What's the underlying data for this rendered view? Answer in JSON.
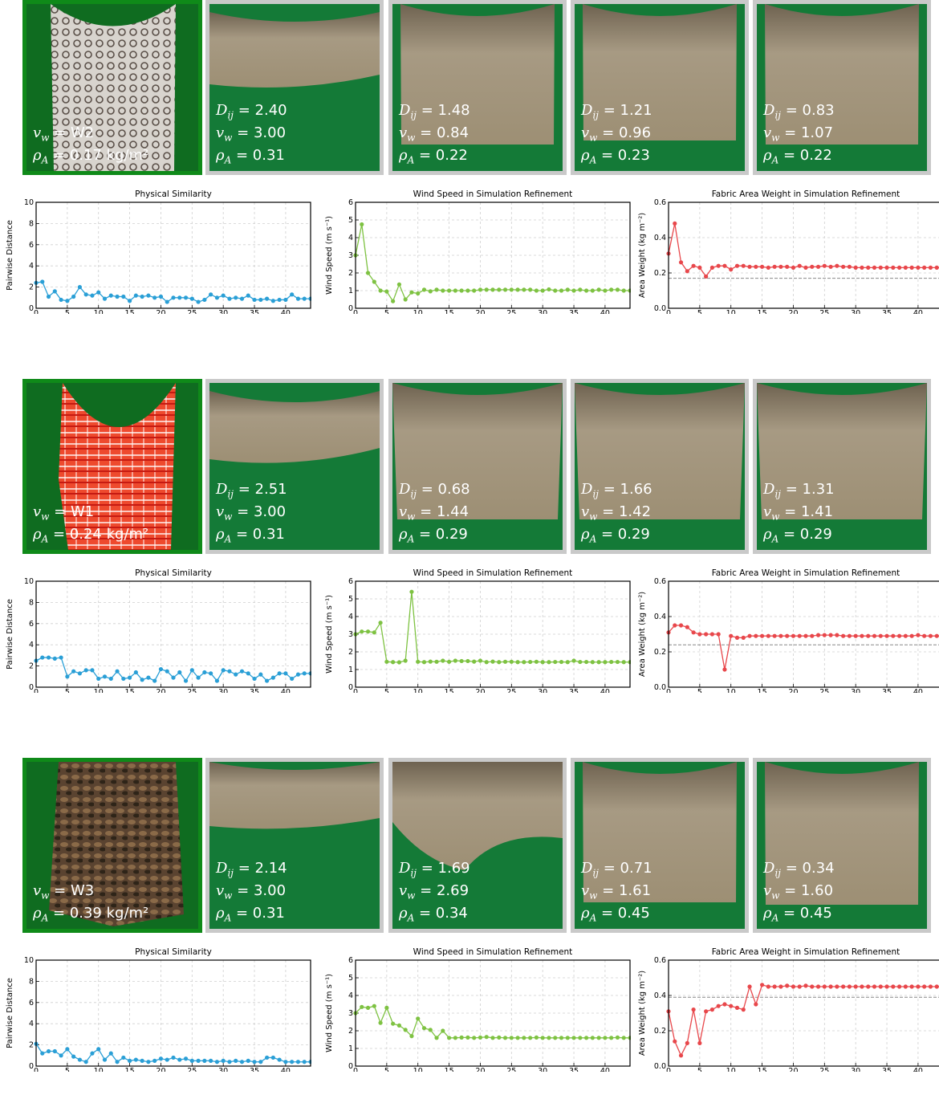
{
  "symbols": {
    "d": "D",
    "d_sub": "ij",
    "v": "v",
    "v_sub": "w",
    "rho": "ρ",
    "rho_sub": "A",
    "eq": " = "
  },
  "rows": [
    {
      "fabric_color": "#d8d4ce",
      "real": {
        "wind_label": "W2",
        "density_label": "0.17 kg/m²"
      },
      "sims": [
        {
          "d": "2.40",
          "v": "3.00",
          "rho": "0.31"
        },
        {
          "d": "1.48",
          "v": "0.84",
          "rho": "0.22"
        },
        {
          "d": "1.21",
          "v": "0.96",
          "rho": "0.23"
        },
        {
          "d": "0.83",
          "v": "1.07",
          "rho": "0.22"
        }
      ]
    },
    {
      "fabric_color": "#ee4a2e",
      "real": {
        "wind_label": "W1",
        "density_label": "0.24 kg/m²"
      },
      "sims": [
        {
          "d": "2.51",
          "v": "3.00",
          "rho": "0.31"
        },
        {
          "d": "0.68",
          "v": "1.44",
          "rho": "0.29"
        },
        {
          "d": "1.66",
          "v": "1.42",
          "rho": "0.29"
        },
        {
          "d": "1.31",
          "v": "1.41",
          "rho": "0.29"
        }
      ]
    },
    {
      "fabric_color": "#5a4330",
      "real": {
        "wind_label": "W3",
        "density_label": "0.39 kg/m²"
      },
      "sims": [
        {
          "d": "2.14",
          "v": "3.00",
          "rho": "0.31"
        },
        {
          "d": "1.69",
          "v": "2.69",
          "rho": "0.34"
        },
        {
          "d": "0.71",
          "v": "1.61",
          "rho": "0.45"
        },
        {
          "d": "0.34",
          "v": "1.60",
          "rho": "0.45"
        }
      ]
    }
  ],
  "chart_data": [
    {
      "type": "line",
      "title": "Physical Similarity",
      "ylabel": "Pairwise Distance",
      "xlim": [
        0,
        44
      ],
      "ylim": [
        0,
        10
      ],
      "xticks": [
        0,
        5,
        10,
        15,
        20,
        25,
        30,
        35,
        40
      ],
      "yticks": [
        0,
        2,
        4,
        6,
        8,
        10
      ],
      "color": "#2a9fd6",
      "grid": true,
      "values": [
        2.4,
        2.5,
        1.1,
        1.6,
        0.8,
        0.7,
        1.1,
        2.0,
        1.3,
        1.2,
        1.5,
        0.9,
        1.2,
        1.1,
        1.1,
        0.7,
        1.2,
        1.1,
        1.2,
        1.0,
        1.1,
        0.6,
        1.0,
        1.0,
        1.0,
        0.9,
        0.6,
        0.8,
        1.3,
        1.0,
        1.2,
        0.9,
        1.0,
        0.9,
        1.2,
        0.8,
        0.8,
        0.9,
        0.7,
        0.8,
        0.8,
        1.3,
        0.9,
        0.9,
        0.9
      ]
    },
    {
      "type": "line",
      "title": "Wind Speed in Simulation Refinement",
      "ylabel": "Wind Speed (m s⁻¹)",
      "xlim": [
        0,
        44
      ],
      "ylim": [
        0,
        6
      ],
      "xticks": [
        0,
        5,
        10,
        15,
        20,
        25,
        30,
        35,
        40
      ],
      "yticks": [
        0,
        1,
        2,
        3,
        4,
        5,
        6
      ],
      "color": "#7ec242",
      "grid": true,
      "values": [
        3.0,
        4.75,
        2.0,
        1.5,
        1.0,
        0.95,
        0.4,
        1.35,
        0.5,
        0.9,
        0.84,
        1.05,
        0.96,
        1.05,
        1.0,
        1.0,
        1.0,
        1.0,
        1.0,
        1.0,
        1.05,
        1.05,
        1.05,
        1.05,
        1.05,
        1.05,
        1.05,
        1.05,
        1.05,
        1.0,
        1.0,
        1.07,
        1.0,
        1.0,
        1.05,
        1.0,
        1.05,
        1.0,
        1.0,
        1.05,
        1.0,
        1.05,
        1.05,
        1.0,
        1.0
      ]
    },
    {
      "type": "line",
      "title": "Fabric Area Weight in Simulation Refinement",
      "ylabel": "Area Weight (kg m⁻²)",
      "xlim": [
        0,
        44
      ],
      "ylim": [
        0,
        0.6
      ],
      "xticks": [
        0,
        5,
        10,
        15,
        20,
        25,
        30,
        35,
        40
      ],
      "yticks": [
        0.0,
        0.2,
        0.4,
        0.6
      ],
      "color": "#e8474b",
      "grid": true,
      "reference": 0.17,
      "values": [
        0.31,
        0.48,
        0.26,
        0.21,
        0.24,
        0.23,
        0.18,
        0.23,
        0.24,
        0.24,
        0.22,
        0.24,
        0.24,
        0.235,
        0.235,
        0.235,
        0.23,
        0.235,
        0.235,
        0.235,
        0.23,
        0.24,
        0.23,
        0.235,
        0.235,
        0.24,
        0.235,
        0.24,
        0.235,
        0.235,
        0.23,
        0.23,
        0.23,
        0.23,
        0.23,
        0.23,
        0.23,
        0.23,
        0.23,
        0.23,
        0.23,
        0.23,
        0.23,
        0.23,
        0.23
      ]
    },
    {
      "type": "line",
      "title": "Physical Similarity",
      "ylabel": "Pairwise Distance",
      "xlim": [
        0,
        44
      ],
      "ylim": [
        0,
        10
      ],
      "xticks": [
        0,
        5,
        10,
        15,
        20,
        25,
        30,
        35,
        40
      ],
      "yticks": [
        0,
        2,
        4,
        6,
        8,
        10
      ],
      "color": "#2a9fd6",
      "grid": true,
      "values": [
        2.5,
        2.8,
        2.8,
        2.7,
        2.8,
        1.0,
        1.5,
        1.3,
        1.6,
        1.6,
        0.8,
        1.0,
        0.8,
        1.5,
        0.8,
        0.9,
        1.4,
        0.7,
        0.9,
        0.6,
        1.7,
        1.5,
        0.9,
        1.4,
        0.6,
        1.6,
        0.9,
        1.4,
        1.3,
        0.6,
        1.6,
        1.5,
        1.2,
        1.5,
        1.3,
        0.8,
        1.2,
        0.6,
        0.9,
        1.3,
        1.3,
        0.8,
        1.2,
        1.3,
        1.3
      ]
    },
    {
      "type": "line",
      "title": "Wind Speed in Simulation Refinement",
      "ylabel": "Wind Speed (m s⁻¹)",
      "xlim": [
        0,
        44
      ],
      "ylim": [
        0,
        6
      ],
      "xticks": [
        0,
        5,
        10,
        15,
        20,
        25,
        30,
        35,
        40
      ],
      "yticks": [
        0,
        1,
        2,
        3,
        4,
        5,
        6
      ],
      "color": "#7ec242",
      "grid": true,
      "values": [
        3.0,
        3.15,
        3.15,
        3.1,
        3.65,
        1.44,
        1.42,
        1.41,
        1.5,
        5.4,
        1.44,
        1.42,
        1.45,
        1.44,
        1.5,
        1.44,
        1.5,
        1.48,
        1.48,
        1.45,
        1.5,
        1.42,
        1.45,
        1.42,
        1.44,
        1.44,
        1.42,
        1.42,
        1.43,
        1.44,
        1.42,
        1.42,
        1.43,
        1.43,
        1.42,
        1.5,
        1.43,
        1.43,
        1.42,
        1.42,
        1.42,
        1.43,
        1.43,
        1.42,
        1.42
      ]
    },
    {
      "type": "line",
      "title": "Fabric Area Weight in Simulation Refinement",
      "ylabel": "Area Weight (kg m⁻²)",
      "xlim": [
        0,
        44
      ],
      "ylim": [
        0,
        0.6
      ],
      "xticks": [
        0,
        5,
        10,
        15,
        20,
        25,
        30,
        35,
        40
      ],
      "yticks": [
        0.0,
        0.2,
        0.4,
        0.6
      ],
      "color": "#e8474b",
      "grid": true,
      "reference": 0.24,
      "values": [
        0.31,
        0.35,
        0.35,
        0.34,
        0.31,
        0.3,
        0.3,
        0.3,
        0.3,
        0.1,
        0.29,
        0.28,
        0.28,
        0.29,
        0.29,
        0.29,
        0.29,
        0.29,
        0.29,
        0.29,
        0.29,
        0.29,
        0.29,
        0.29,
        0.295,
        0.295,
        0.295,
        0.295,
        0.29,
        0.29,
        0.29,
        0.29,
        0.29,
        0.29,
        0.29,
        0.29,
        0.29,
        0.29,
        0.29,
        0.29,
        0.295,
        0.29,
        0.29,
        0.29,
        0.29
      ]
    },
    {
      "type": "line",
      "title": "Physical Similarity",
      "ylabel": "Pairwise Distance",
      "xlim": [
        0,
        44
      ],
      "ylim": [
        0,
        10
      ],
      "xticks": [
        0,
        5,
        10,
        15,
        20,
        25,
        30,
        35,
        40
      ],
      "yticks": [
        0,
        2,
        4,
        6,
        8,
        10
      ],
      "color": "#2a9fd6",
      "grid": true,
      "values": [
        2.1,
        1.2,
        1.4,
        1.4,
        1.0,
        1.6,
        0.9,
        0.6,
        0.4,
        1.2,
        1.6,
        0.6,
        1.2,
        0.4,
        0.8,
        0.5,
        0.6,
        0.5,
        0.4,
        0.5,
        0.7,
        0.6,
        0.8,
        0.6,
        0.7,
        0.5,
        0.5,
        0.5,
        0.5,
        0.4,
        0.5,
        0.4,
        0.5,
        0.4,
        0.5,
        0.4,
        0.4,
        0.8,
        0.8,
        0.6,
        0.4,
        0.4,
        0.4,
        0.4,
        0.4
      ]
    },
    {
      "type": "line",
      "title": "Wind Speed in Simulation Refinement",
      "ylabel": "Wind Speed (m s⁻¹)",
      "xlim": [
        0,
        44
      ],
      "ylim": [
        0,
        6
      ],
      "xticks": [
        0,
        5,
        10,
        15,
        20,
        25,
        30,
        35,
        40
      ],
      "yticks": [
        0,
        1,
        2,
        3,
        4,
        5,
        6
      ],
      "color": "#7ec242",
      "grid": true,
      "values": [
        3.0,
        3.35,
        3.3,
        3.4,
        2.45,
        3.3,
        2.4,
        2.3,
        2.05,
        1.7,
        2.69,
        2.15,
        2.05,
        1.6,
        2.0,
        1.6,
        1.6,
        1.62,
        1.62,
        1.6,
        1.62,
        1.65,
        1.6,
        1.62,
        1.6,
        1.6,
        1.6,
        1.6,
        1.6,
        1.62,
        1.6,
        1.6,
        1.6,
        1.6,
        1.6,
        1.6,
        1.6,
        1.6,
        1.6,
        1.6,
        1.6,
        1.6,
        1.62,
        1.6,
        1.6
      ]
    },
    {
      "type": "line",
      "title": "Fabric Area Weight in Simulation Refinement",
      "ylabel": "Area Weight (kg m⁻²)",
      "xlim": [
        0,
        44
      ],
      "ylim": [
        0,
        0.6
      ],
      "xticks": [
        0,
        5,
        10,
        15,
        20,
        25,
        30,
        35,
        40
      ],
      "yticks": [
        0.0,
        0.2,
        0.4,
        0.6
      ],
      "color": "#e8474b",
      "grid": true,
      "reference": 0.39,
      "values": [
        0.31,
        0.14,
        0.06,
        0.13,
        0.32,
        0.13,
        0.31,
        0.32,
        0.34,
        0.35,
        0.34,
        0.33,
        0.32,
        0.45,
        0.35,
        0.46,
        0.45,
        0.45,
        0.45,
        0.455,
        0.45,
        0.45,
        0.455,
        0.45,
        0.45,
        0.45,
        0.45,
        0.45,
        0.45,
        0.45,
        0.45,
        0.45,
        0.45,
        0.45,
        0.45,
        0.45,
        0.45,
        0.45,
        0.45,
        0.45,
        0.45,
        0.45,
        0.45,
        0.45,
        0.45
      ]
    }
  ]
}
